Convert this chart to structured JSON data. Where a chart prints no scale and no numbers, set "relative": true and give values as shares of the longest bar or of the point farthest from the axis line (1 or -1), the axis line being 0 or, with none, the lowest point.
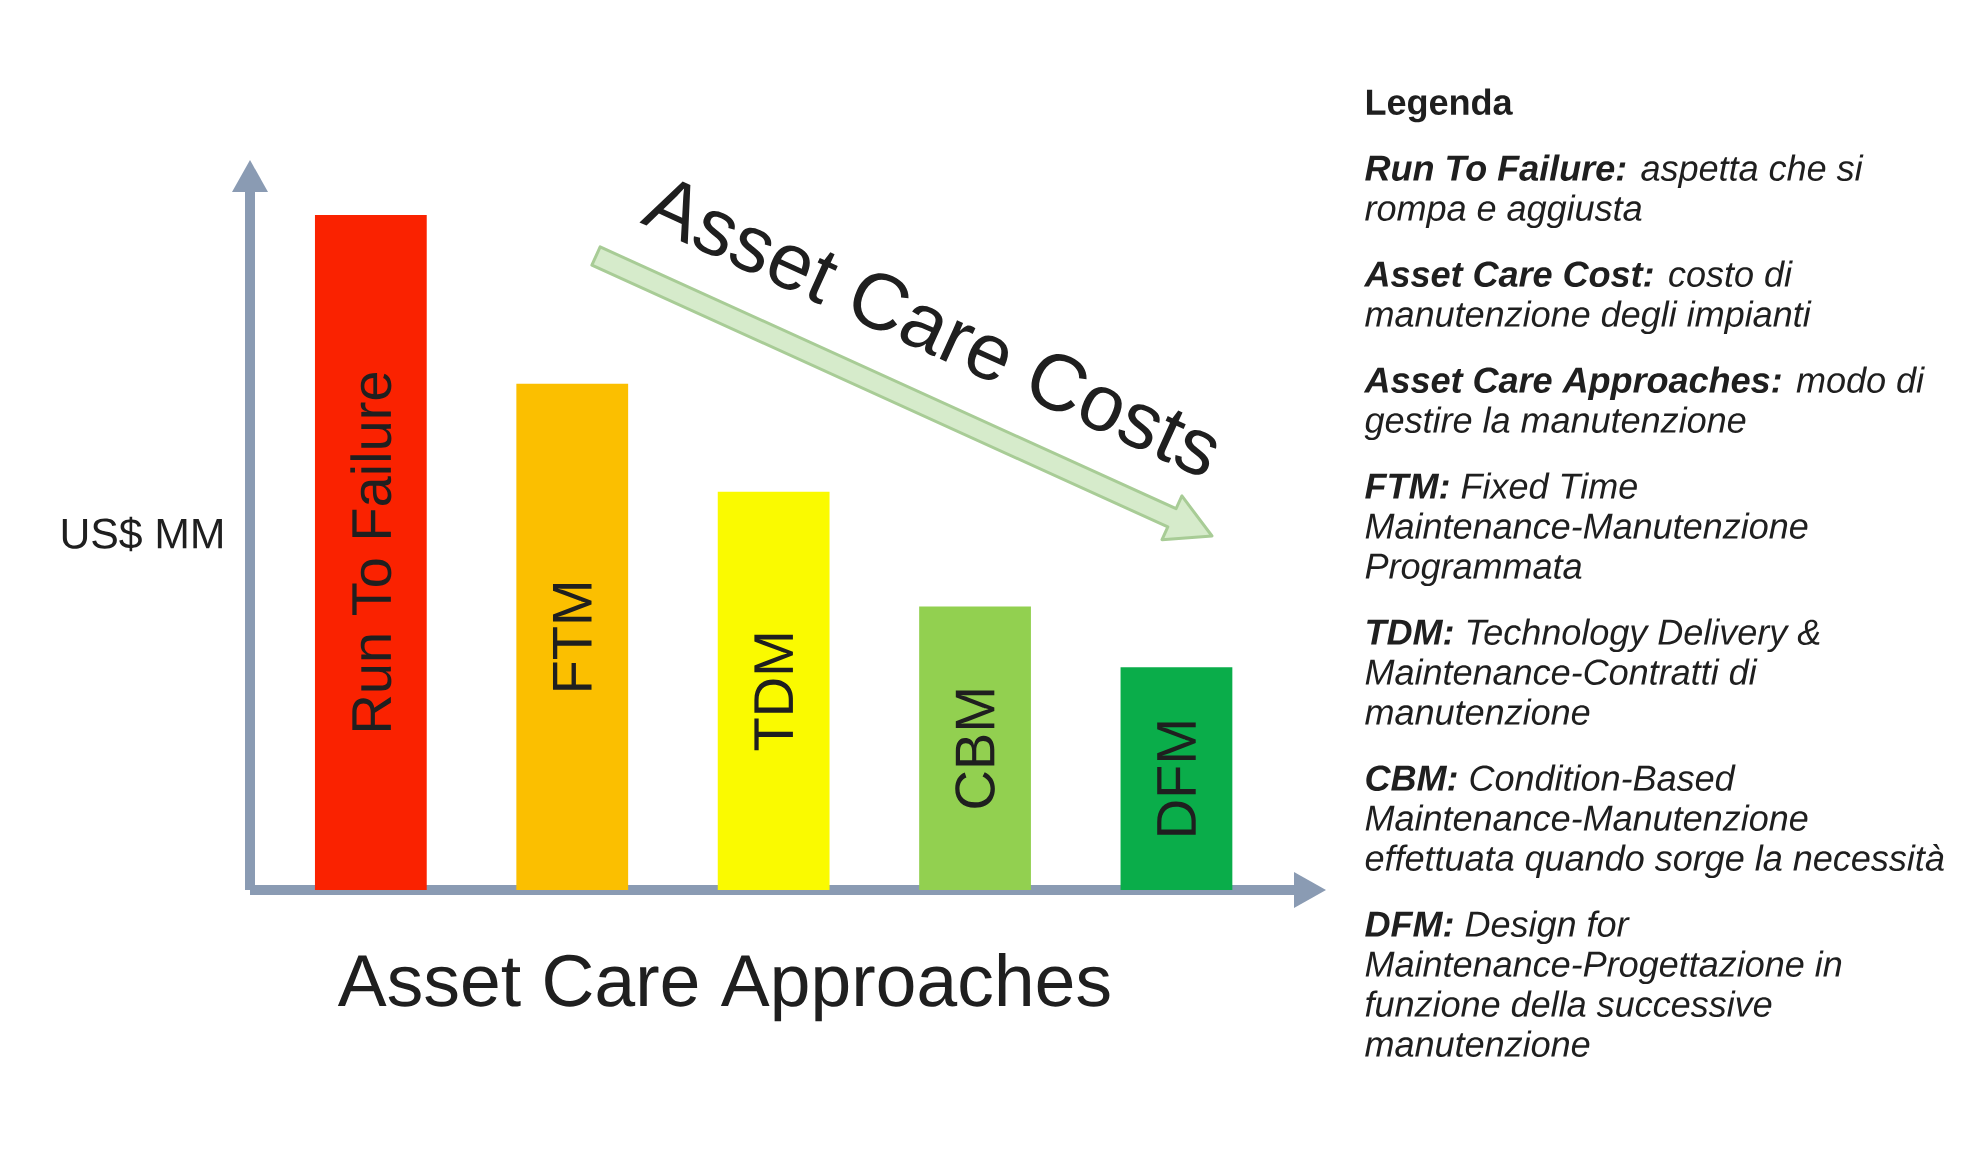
{
  "chart_data": {
    "type": "bar",
    "relative": true,
    "xlabel": "Asset Care Approaches",
    "ylabel": "US$ MM",
    "categories": [
      "Run To Failure",
      "FTM",
      "TDM",
      "CBM",
      "DFM"
    ],
    "values": [
      1,
      0.75,
      0.59,
      0.42,
      0.33
    ],
    "colors": [
      "#fa2200",
      "#fbbf00",
      "#fafa00",
      "#92d050",
      "#0aad4a"
    ],
    "annotations": [
      "Legenda",
      "**Run To Failure:** aspetta che si rompa e aggiusta",
      "**Asset Care Cost:** costo di manutenzione degli impianti",
      "**Asset Care Approaches:** modo di gestire la manutenzione",
      "**FTM:** Fixed Time Maintenance-Manutenzione Programmata",
      "**TDM:** Technology Delivery & Maintenance-Contratti di manutenzione",
      "**CBM:** Condition-Based Maintenance-Manutenzione effettuata quando sorge la necessità",
      "**DFM:** Design for Maintenance-Progettazione in funzione della successive manutenzione",
      "Asset Care Costs"
    ]
  }
}
